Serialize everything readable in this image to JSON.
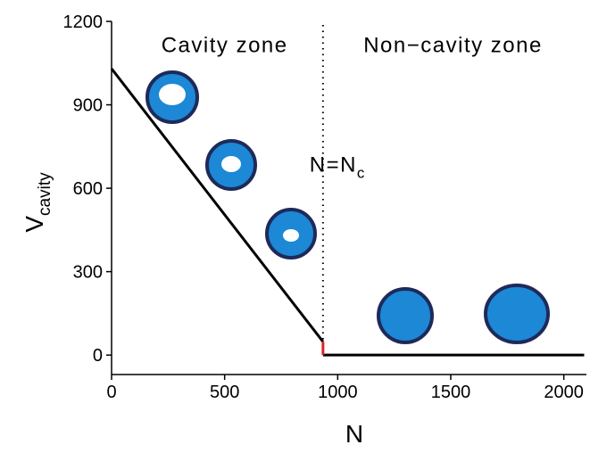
{
  "chart_data": {
    "type": "line",
    "xlabel": "N",
    "ylabel": "V",
    "ylabel_sub": "cavity",
    "annotations": [
      {
        "text": "Cavity zone",
        "x": 500,
        "y": 1090
      },
      {
        "text": "Non−cavity zone",
        "x": 1510,
        "y": 1090
      },
      {
        "text": "N=N",
        "sub": "c",
        "x": 1000,
        "y": 660
      }
    ],
    "series": [
      {
        "color": "#000000",
        "x": [
          0,
          935
        ],
        "values": [
          1030,
          48
        ]
      },
      {
        "color": "#000000",
        "x": [
          935,
          2090
        ],
        "values": [
          0,
          0
        ]
      },
      {
        "color": "#d62728",
        "x": [
          935,
          935
        ],
        "values": [
          48,
          0
        ]
      }
    ],
    "vline": {
      "x": 935,
      "color": "#000000"
    },
    "xlim": [
      0,
      2100
    ],
    "ylim": [
      -70,
      1200
    ],
    "xticks": [
      0,
      500,
      1000,
      1500,
      2000
    ],
    "yticks": [
      0,
      300,
      600,
      900,
      1200
    ]
  }
}
